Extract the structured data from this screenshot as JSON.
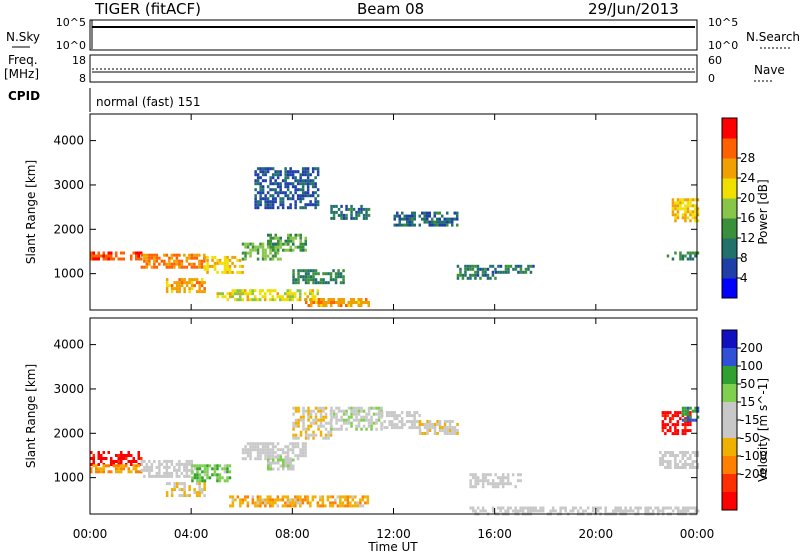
{
  "header": {
    "radar": "TIGER (fitACF)",
    "beam": "Beam 08",
    "date": "29/Jun/2013"
  },
  "summary_panel": {
    "left_labels": {
      "nsky": "N.Sky",
      "freq": "Freq.",
      "freq_unit": "[MHz]",
      "cpid": "CPID"
    },
    "right_labels": {
      "nsearch": "N.Search",
      "nave": "Nave"
    },
    "nsky_ticks": [
      "10^5",
      "10^0"
    ],
    "nsearch_ticks": [
      "10^5",
      "10^0"
    ],
    "freq_ticks": [
      "18",
      "8"
    ],
    "nave_ticks": [
      "60",
      "0"
    ],
    "cpid_text": "normal (fast) 151"
  },
  "colors": {
    "power_scale": [
      "#0000ff",
      "#1f3fa8",
      "#22706a",
      "#3a8f3a",
      "#88c64a",
      "#f0e000",
      "#f0a000",
      "#ff6000",
      "#ff0000"
    ],
    "velocity_scale": [
      "#1010c0",
      "#3050d8",
      "#30a030",
      "#80d050",
      "#c8c8c8",
      "#c8c8c8",
      "#f0b000",
      "#ff8000",
      "#ff3000",
      "#ff0000"
    ]
  },
  "x_axis": {
    "label": "Time UT",
    "ticks": [
      "00:00",
      "04:00",
      "08:00",
      "12:00",
      "16:00",
      "20:00",
      "00:00"
    ]
  },
  "chart_data": [
    {
      "type": "heatmap",
      "panel": "power",
      "ylabel": "Slant Range [km]",
      "ylim": [
        180,
        4600
      ],
      "yticks": [
        1000,
        2000,
        3000,
        4000
      ],
      "xlim_hours": [
        0,
        24
      ],
      "colorbar": {
        "label": "Power [dB]",
        "ticks": [
          4,
          8,
          12,
          16,
          20,
          24,
          28
        ],
        "range": [
          0,
          30
        ]
      },
      "regions": [
        {
          "t": [
            0.0,
            2.0
          ],
          "r": [
            1300,
            1500
          ],
          "v": 26
        },
        {
          "t": [
            2.0,
            4.5
          ],
          "r": [
            1150,
            1450
          ],
          "v": 24
        },
        {
          "t": [
            3.0,
            4.5
          ],
          "r": [
            600,
            900
          ],
          "v": 22
        },
        {
          "t": [
            4.5,
            6.0
          ],
          "r": [
            1050,
            1400
          ],
          "v": 20
        },
        {
          "t": [
            6.0,
            7.5
          ],
          "r": [
            1300,
            1700
          ],
          "v": 14
        },
        {
          "t": [
            7.0,
            8.5
          ],
          "r": [
            1500,
            1900
          ],
          "v": 12
        },
        {
          "t": [
            5.0,
            9.0
          ],
          "r": [
            400,
            650
          ],
          "v": 18
        },
        {
          "t": [
            8.5,
            11.0
          ],
          "r": [
            300,
            450
          ],
          "v": 22
        },
        {
          "t": [
            8.0,
            10.0
          ],
          "r": [
            800,
            1100
          ],
          "v": 10
        },
        {
          "t": [
            9.5,
            11.0
          ],
          "r": [
            2250,
            2550
          ],
          "v": 8
        },
        {
          "t": [
            12.0,
            14.5
          ],
          "r": [
            2100,
            2400
          ],
          "v": 8
        },
        {
          "t": [
            14.5,
            16.0
          ],
          "r": [
            900,
            1200
          ],
          "v": 9
        },
        {
          "t": [
            16.0,
            17.5
          ],
          "r": [
            1000,
            1200
          ],
          "v": 9
        },
        {
          "t": [
            6.5,
            9.0
          ],
          "r": [
            2500,
            3400
          ],
          "v": 6
        },
        {
          "t": [
            22.8,
            24.0
          ],
          "r": [
            1300,
            1500
          ],
          "v": 10
        },
        {
          "t": [
            23.0,
            24.0
          ],
          "r": [
            2200,
            2700
          ],
          "v": 20
        }
      ]
    },
    {
      "type": "heatmap",
      "panel": "velocity",
      "ylabel": "Slant Range [km]",
      "ylim": [
        180,
        4600
      ],
      "yticks": [
        1000,
        2000,
        3000,
        4000
      ],
      "xlim_hours": [
        0,
        24
      ],
      "colorbar": {
        "label": "Velocity [m s^-1]",
        "ticks": [
          200,
          100,
          50,
          15,
          -15,
          -50,
          -100,
          -200
        ],
        "range": [
          -250,
          250
        ]
      },
      "regions": [
        {
          "t": [
            0.0,
            2.0
          ],
          "r": [
            1300,
            1600
          ],
          "v": -230
        },
        {
          "t": [
            0.0,
            2.0
          ],
          "r": [
            1100,
            1300
          ],
          "v": -100
        },
        {
          "t": [
            2.0,
            4.0
          ],
          "r": [
            1000,
            1400
          ],
          "v": 0
        },
        {
          "t": [
            3.0,
            4.5
          ],
          "r": [
            600,
            900
          ],
          "v": -40
        },
        {
          "t": [
            4.0,
            5.5
          ],
          "r": [
            900,
            1300
          ],
          "v": 80
        },
        {
          "t": [
            6.0,
            8.5
          ],
          "r": [
            1400,
            1800
          ],
          "v": 0
        },
        {
          "t": [
            7.0,
            8.0
          ],
          "r": [
            1200,
            1500
          ],
          "v": 40
        },
        {
          "t": [
            5.5,
            11.0
          ],
          "r": [
            350,
            600
          ],
          "v": -80
        },
        {
          "t": [
            8.0,
            9.5
          ],
          "r": [
            1900,
            2600
          ],
          "v": -40
        },
        {
          "t": [
            9.5,
            11.5
          ],
          "r": [
            2100,
            2600
          ],
          "v": 30
        },
        {
          "t": [
            11.5,
            13.0
          ],
          "r": [
            2100,
            2500
          ],
          "v": 0
        },
        {
          "t": [
            13.0,
            14.5
          ],
          "r": [
            2000,
            2300
          ],
          "v": -30
        },
        {
          "t": [
            15.0,
            17.0
          ],
          "r": [
            800,
            1100
          ],
          "v": 0
        },
        {
          "t": [
            22.5,
            24.0
          ],
          "r": [
            1200,
            1600
          ],
          "v": 0
        },
        {
          "t": [
            22.6,
            23.7
          ],
          "r": [
            2000,
            2500
          ],
          "v": -230
        },
        {
          "t": [
            23.4,
            24.0
          ],
          "r": [
            2300,
            2600
          ],
          "v": 150
        },
        {
          "t": [
            15.0,
            24.0
          ],
          "r": [
            200,
            350
          ],
          "v": 0
        }
      ]
    }
  ]
}
